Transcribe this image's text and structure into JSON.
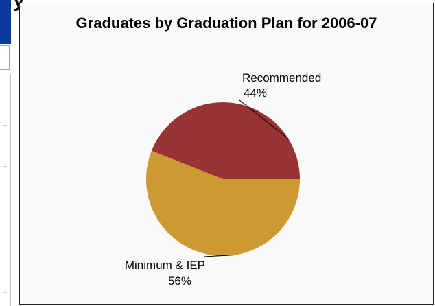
{
  "background_ui": {
    "cropped_letter": "y"
  },
  "chart_data": {
    "type": "pie",
    "title": "Graduates by Graduation Plan for 2006-07",
    "slices": [
      {
        "label": "Recommended",
        "value_label": "44%",
        "value": 44,
        "color": "#993333"
      },
      {
        "label": "Minimum & IEP",
        "value_label": "56%",
        "value": 56,
        "color": "#cc9933"
      }
    ],
    "legend": "none"
  }
}
